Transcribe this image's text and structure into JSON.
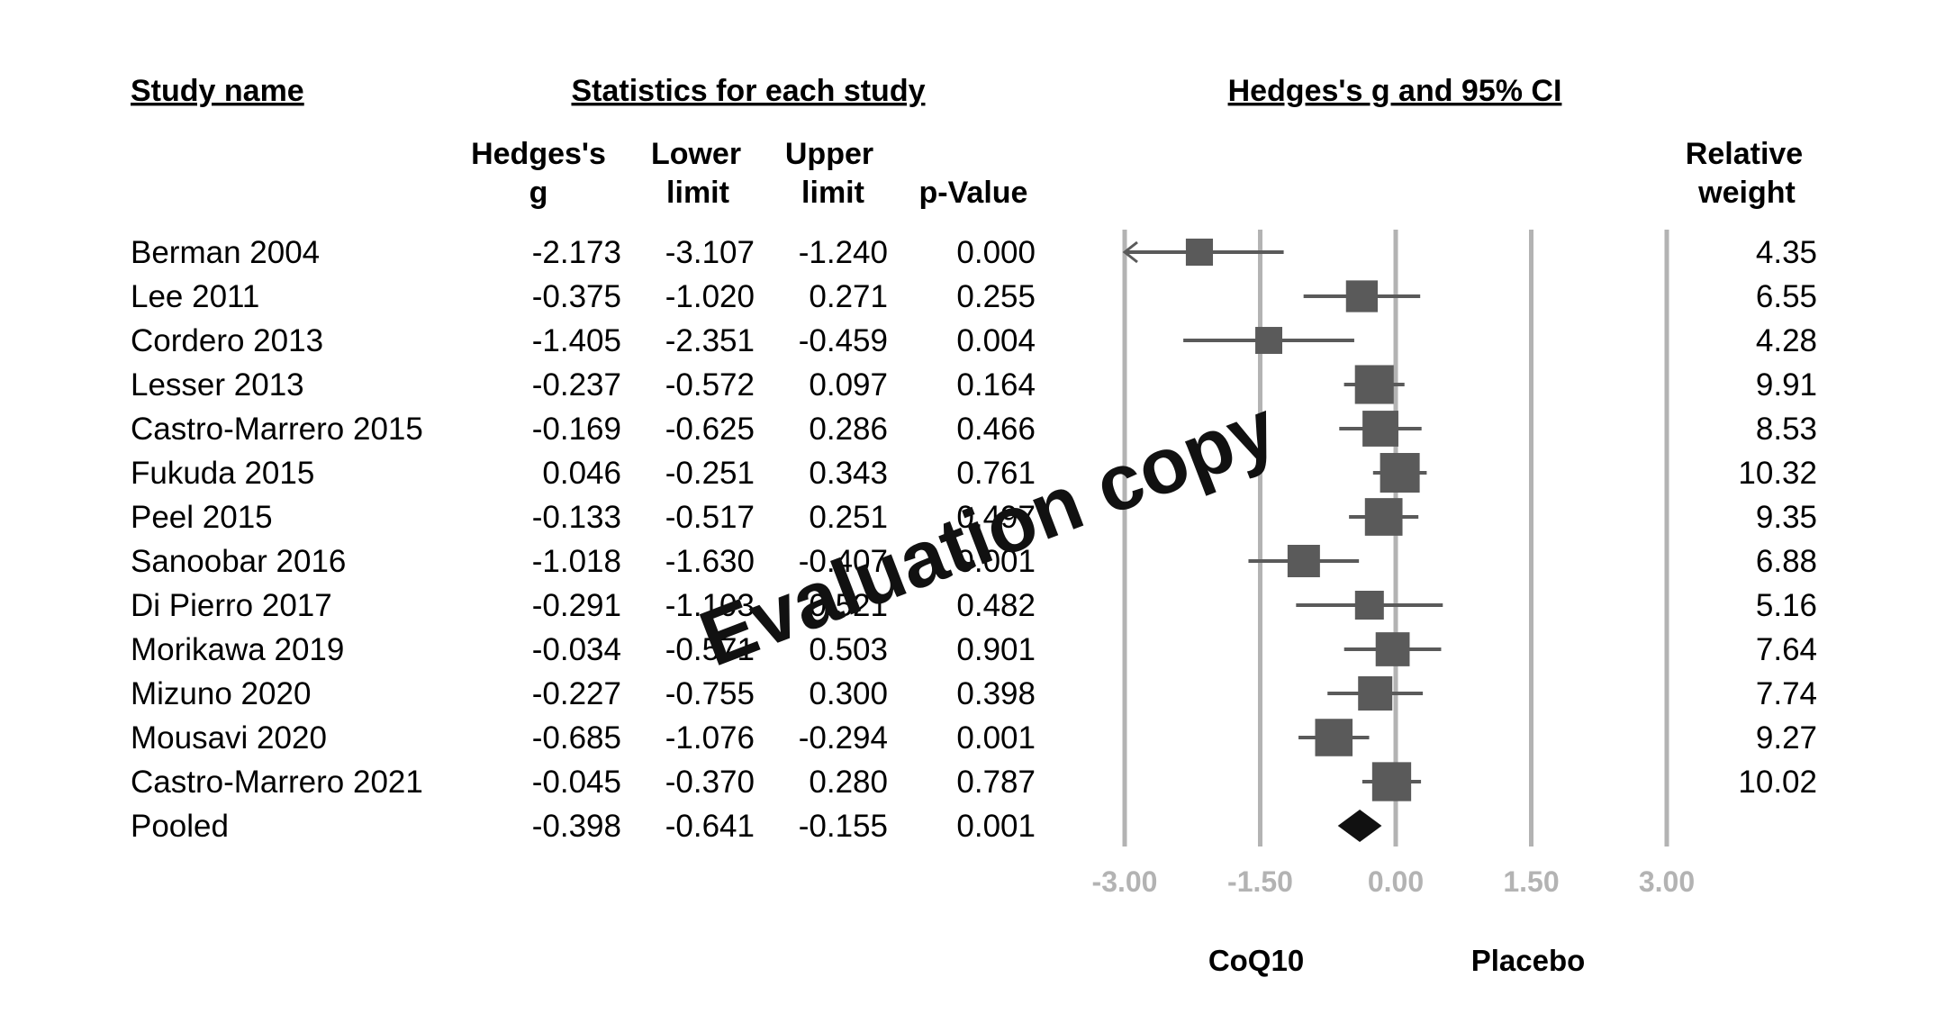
{
  "headers": {
    "study_name": "Study name",
    "statistics": "Statistics for each study",
    "effect": "Hedges's g and 95% CI",
    "g_line1": "Hedges's",
    "g_line2": "g",
    "lower_line1": "Lower",
    "lower_line2": "limit",
    "upper_line1": "Upper",
    "upper_line2": "limit",
    "pvalue": "p-Value",
    "weight_line1": "Relative",
    "weight_line2": "weight"
  },
  "axis_labels": {
    "left": "CoQ10",
    "right": "Placebo"
  },
  "watermark": "Evaluation copy",
  "colors": {
    "study_marker": "#5a5a5a",
    "pooled_diamond": "#111111",
    "gridline": "#b3b3b3",
    "tick_label": "#b3b3b3"
  },
  "chart_data": {
    "type": "forest",
    "xlim": [
      -3,
      3
    ],
    "xticks": [
      -3,
      -1.5,
      0,
      1.5,
      3
    ],
    "xtick_labels": [
      "-3.00",
      "-1.50",
      "0.00",
      "1.50",
      "3.00"
    ],
    "studies": [
      {
        "name": "Berman 2004",
        "g": "-2.173",
        "lower": "-3.107",
        "upper": "-1.240",
        "p": "0.000",
        "weight": "4.35"
      },
      {
        "name": "Lee 2011",
        "g": "-0.375",
        "lower": "-1.020",
        "upper": "0.271",
        "p": "0.255",
        "weight": "6.55"
      },
      {
        "name": "Cordero 2013",
        "g": "-1.405",
        "lower": "-2.351",
        "upper": "-0.459",
        "p": "0.004",
        "weight": "4.28"
      },
      {
        "name": "Lesser 2013",
        "g": "-0.237",
        "lower": "-0.572",
        "upper": "0.097",
        "p": "0.164",
        "weight": "9.91"
      },
      {
        "name": "Castro-Marrero 2015",
        "g": "-0.169",
        "lower": "-0.625",
        "upper": "0.286",
        "p": "0.466",
        "weight": "8.53"
      },
      {
        "name": "Fukuda 2015",
        "g": "0.046",
        "lower": "-0.251",
        "upper": "0.343",
        "p": "0.761",
        "weight": "10.32"
      },
      {
        "name": "Peel 2015",
        "g": "-0.133",
        "lower": "-0.517",
        "upper": "0.251",
        "p": "0.497",
        "weight": "9.35"
      },
      {
        "name": "Sanoobar 2016",
        "g": "-1.018",
        "lower": "-1.630",
        "upper": "-0.407",
        "p": "0.001",
        "weight": "6.88"
      },
      {
        "name": "Di Pierro 2017",
        "g": "-0.291",
        "lower": "-1.103",
        "upper": "0.521",
        "p": "0.482",
        "weight": "5.16"
      },
      {
        "name": "Morikawa 2019",
        "g": "-0.034",
        "lower": "-0.571",
        "upper": "0.503",
        "p": "0.901",
        "weight": "7.64"
      },
      {
        "name": "Mizuno 2020",
        "g": "-0.227",
        "lower": "-0.755",
        "upper": "0.300",
        "p": "0.398",
        "weight": "7.74"
      },
      {
        "name": "Mousavi 2020",
        "g": "-0.685",
        "lower": "-1.076",
        "upper": "-0.294",
        "p": "0.001",
        "weight": "9.27"
      },
      {
        "name": "Castro-Marrero 2021",
        "g": "-0.045",
        "lower": "-0.370",
        "upper": "0.280",
        "p": "0.787",
        "weight": "10.02"
      }
    ],
    "pooled": {
      "name": "Pooled",
      "g": "-0.398",
      "lower": "-0.641",
      "upper": "-0.155",
      "p": "0.001"
    }
  }
}
